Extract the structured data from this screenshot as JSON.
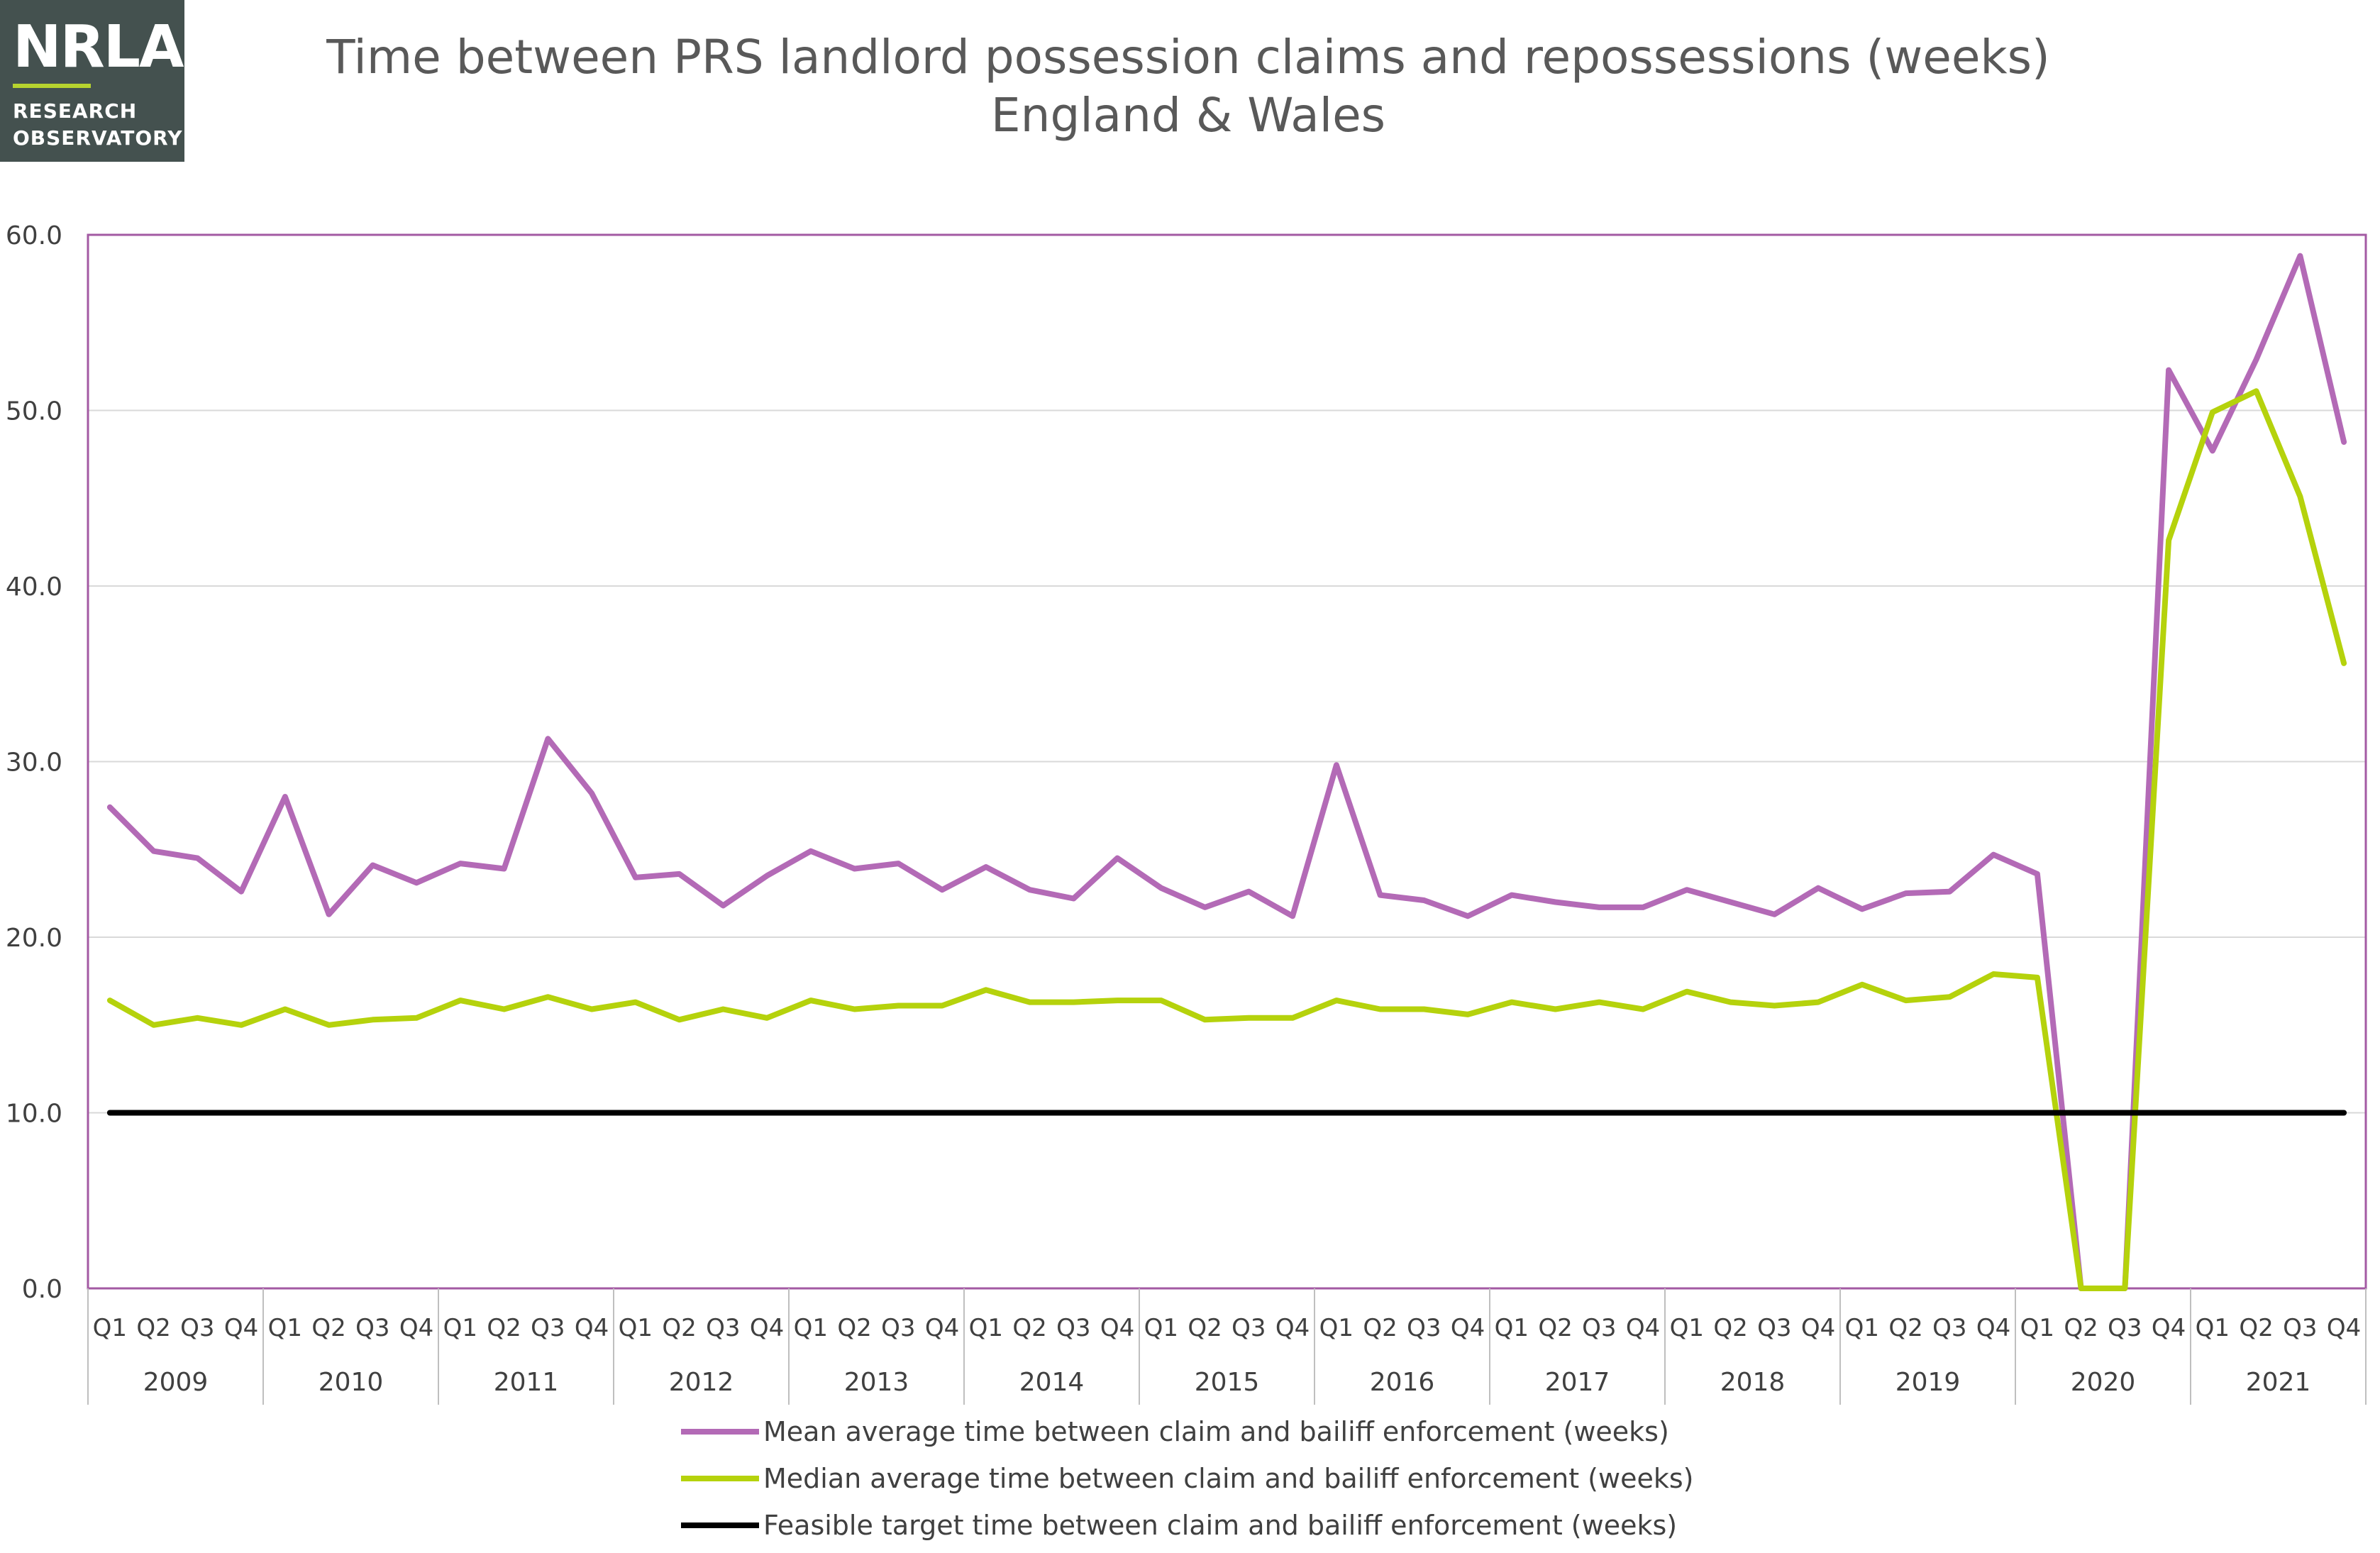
{
  "logo": {
    "mark": "NRLA",
    "line1": "RESEARCH",
    "line2": "OBSERVATORY"
  },
  "title_line1": "Time between PRS landlord possession claims and repossessions (weeks)",
  "title_line2": "England & Wales",
  "chart_data": {
    "type": "line",
    "title": "Time between PRS landlord possession claims and repossessions (weeks) England & Wales",
    "xlabel": "",
    "ylabel": "",
    "ylim": [
      0,
      60
    ],
    "yticks": [
      "0.0",
      "10.0",
      "20.0",
      "30.0",
      "40.0",
      "50.0",
      "60.0"
    ],
    "grid": true,
    "legend_position": "bottom",
    "years": [
      "2009",
      "2010",
      "2011",
      "2012",
      "2013",
      "2014",
      "2015",
      "2016",
      "2017",
      "2018",
      "2019",
      "2020",
      "2021"
    ],
    "quarters": [
      "Q1",
      "Q2",
      "Q3",
      "Q4"
    ],
    "series": [
      {
        "name": "Mean average time between claim and bailiff enforcement (weeks)",
        "color": "#b36ab6",
        "values": [
          27.4,
          24.9,
          24.5,
          22.6,
          28.0,
          21.3,
          24.1,
          23.1,
          24.2,
          23.9,
          31.3,
          28.2,
          23.4,
          23.6,
          21.8,
          23.5,
          24.9,
          23.9,
          24.2,
          22.7,
          24.0,
          22.7,
          22.2,
          24.5,
          22.8,
          21.7,
          22.6,
          21.2,
          29.8,
          22.4,
          22.1,
          21.2,
          22.4,
          22.0,
          21.7,
          21.7,
          22.7,
          22.0,
          21.3,
          22.8,
          21.6,
          22.5,
          22.6,
          24.7,
          23.6,
          0.0,
          0.0,
          52.3,
          47.7,
          52.9,
          58.8,
          48.2
        ]
      },
      {
        "name": "Median average time between claim and bailiff enforcement (weeks)",
        "color": "#b5d20c",
        "values": [
          16.4,
          15.0,
          15.4,
          15.0,
          15.9,
          15.0,
          15.3,
          15.4,
          16.4,
          15.9,
          16.6,
          15.9,
          16.3,
          15.3,
          15.9,
          15.4,
          16.4,
          15.9,
          16.1,
          16.1,
          17.0,
          16.3,
          16.3,
          16.4,
          16.4,
          15.3,
          15.4,
          15.4,
          16.4,
          15.9,
          15.9,
          15.6,
          16.3,
          15.9,
          16.3,
          15.9,
          16.9,
          16.3,
          16.1,
          16.3,
          17.3,
          16.4,
          16.6,
          17.9,
          17.7,
          0.0,
          0.0,
          42.6,
          49.9,
          51.1,
          45.1,
          35.6
        ]
      },
      {
        "name": "Feasible target time between claim and bailiff enforcement (weeks)",
        "color": "#000000",
        "values": [
          10,
          10,
          10,
          10,
          10,
          10,
          10,
          10,
          10,
          10,
          10,
          10,
          10,
          10,
          10,
          10,
          10,
          10,
          10,
          10,
          10,
          10,
          10,
          10,
          10,
          10,
          10,
          10,
          10,
          10,
          10,
          10,
          10,
          10,
          10,
          10,
          10,
          10,
          10,
          10,
          10,
          10,
          10,
          10,
          10,
          10,
          10,
          10,
          10,
          10,
          10,
          10
        ]
      }
    ]
  }
}
